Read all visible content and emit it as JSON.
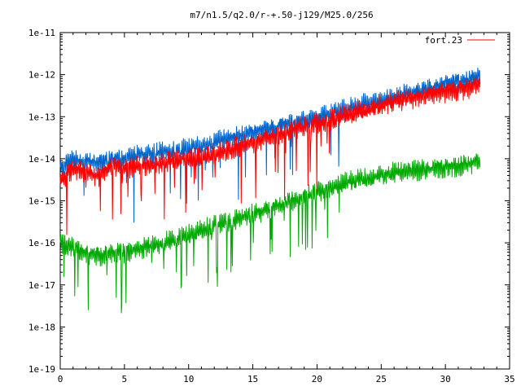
{
  "chart_data": {
    "type": "line",
    "title": "m7/n1.5/q2.0/r-+.50-j129/M25.0/256",
    "xlabel": "",
    "ylabel": "",
    "xlim": [
      0,
      35
    ],
    "ylim": [
      1e-19,
      1e-11
    ],
    "y_scale": "log",
    "grid": false,
    "legend_position": "top-right",
    "x_ticks": [
      "0",
      "5",
      "10",
      "15",
      "20",
      "25",
      "30",
      "35"
    ],
    "y_ticks": [
      "1e-19",
      "1e-18",
      "1e-17",
      "1e-16",
      "1e-15",
      "1e-14",
      "1e-13",
      "1e-12",
      "1e-11"
    ],
    "series": [
      {
        "name": "fort.23",
        "color": "#ff0000",
        "x": [
          0,
          1,
          2,
          3,
          4,
          5,
          6,
          7,
          8,
          9,
          10,
          11,
          12,
          13,
          14,
          15,
          16,
          17,
          18,
          19,
          20,
          21,
          22,
          23,
          24,
          25,
          26,
          27,
          28,
          29,
          30,
          31,
          32,
          32.7
        ],
        "y": [
          3e-15,
          6e-15,
          5e-15,
          4e-15,
          7e-15,
          6e-15,
          7e-15,
          7e-15,
          8e-15,
          9e-15,
          1e-14,
          1e-14,
          1.3e-14,
          1.5e-14,
          2e-14,
          2.5e-14,
          3e-14,
          4e-14,
          5e-14,
          6e-14,
          7e-14,
          8e-14,
          1e-13,
          1.2e-13,
          1.5e-13,
          1.8e-13,
          2.2e-13,
          2.6e-13,
          3e-13,
          3.5e-13,
          4e-13,
          4.5e-13,
          5e-13,
          6e-13
        ]
      },
      {
        "color": "#0066cc",
        "x": [
          0,
          1,
          2,
          3,
          4,
          5,
          6,
          7,
          8,
          9,
          10,
          11,
          12,
          13,
          14,
          15,
          16,
          17,
          18,
          19,
          20,
          21,
          22,
          23,
          24,
          25,
          26,
          27,
          28,
          29,
          30,
          31,
          32,
          32.7
        ],
        "y": [
          6e-15,
          1e-14,
          9e-15,
          8e-15,
          1e-14,
          1e-14,
          1.2e-14,
          1.3e-14,
          1.4e-14,
          1.6e-14,
          1.8e-14,
          2e-14,
          2.5e-14,
          3e-14,
          3.5e-14,
          4e-14,
          5e-14,
          6e-14,
          7e-14,
          8e-14,
          1e-13,
          1.2e-13,
          1.4e-13,
          1.7e-13,
          2e-13,
          2.5e-13,
          3e-13,
          3.5e-13,
          4e-13,
          5e-13,
          6e-13,
          7e-13,
          8e-13,
          9e-13
        ]
      },
      {
        "color": "#00aa00",
        "x": [
          0,
          1,
          2,
          3,
          4,
          5,
          6,
          7,
          8,
          9,
          10,
          11,
          12,
          13,
          14,
          15,
          16,
          17,
          18,
          19,
          20,
          21,
          22,
          23,
          24,
          25,
          26,
          27,
          28,
          29,
          30,
          31,
          32,
          32.7
        ],
        "y": [
          1e-16,
          8e-17,
          6e-17,
          5e-17,
          6e-17,
          6e-17,
          7e-17,
          8e-17,
          1e-16,
          1.2e-16,
          1.5e-16,
          2e-16,
          2.5e-16,
          3e-16,
          4e-16,
          5e-16,
          6e-16,
          8e-16,
          1e-15,
          1.3e-15,
          1.6e-15,
          2e-15,
          2.5e-15,
          3e-15,
          3.5e-15,
          4e-15,
          4.5e-15,
          5e-15,
          5.5e-15,
          6e-15,
          6.5e-15,
          7e-15,
          8e-15,
          9e-15
        ]
      }
    ]
  }
}
